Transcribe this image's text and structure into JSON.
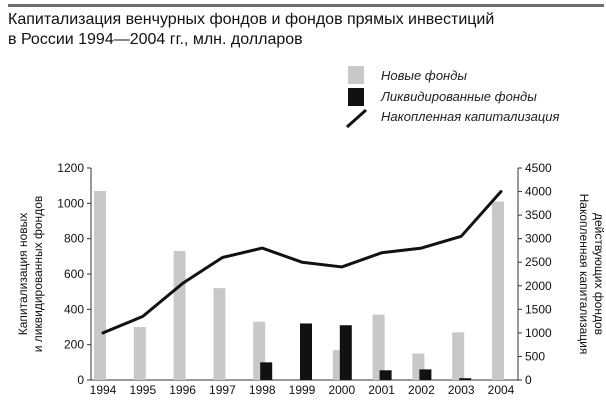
{
  "title": {
    "line1": "Капитализация венчурных фондов и фондов прямых инвестиций",
    "line2": "в России 1994—2004 гг., млн. долларов"
  },
  "legend": {
    "new_funds": "Новые фонды",
    "liquidated_funds": "Ликвидированные фонды",
    "accumulated": "Накопленная капитализация"
  },
  "colors": {
    "new_funds": "#c8c8c8",
    "liquidated_funds": "#111111",
    "line": "#111111",
    "axis": "#333333",
    "title_rule": "#6e6e6e"
  },
  "chart_data": {
    "type": "bar",
    "categories": [
      "1994",
      "1995",
      "1996",
      "1997",
      "1998",
      "1999",
      "2000",
      "2001",
      "2002",
      "2003",
      "2004"
    ],
    "series": [
      {
        "name": "Новые фонды",
        "type": "bar",
        "axis": "left",
        "values": [
          1070,
          300,
          730,
          520,
          330,
          0,
          170,
          370,
          150,
          270,
          1010
        ]
      },
      {
        "name": "Ликвидированные фонды",
        "type": "bar",
        "axis": "left",
        "values": [
          0,
          0,
          0,
          0,
          100,
          320,
          310,
          55,
          60,
          10,
          0
        ]
      },
      {
        "name": "Накопленная капитализация",
        "type": "line",
        "axis": "right",
        "values": [
          1000,
          1350,
          2050,
          2600,
          2800,
          2500,
          2400,
          2700,
          2800,
          3050,
          4000
        ]
      }
    ],
    "ylabel_left_line1": "Капитализация новых",
    "ylabel_left_line2": "и ликвидированных фондов",
    "ylabel_right_line1": "Накопленная капитализация",
    "ylabel_right_line2": "действующих фондов",
    "ylim_left": [
      0,
      1200
    ],
    "yticks_left": [
      0,
      200,
      400,
      600,
      800,
      1000,
      1200
    ],
    "ylim_right": [
      0,
      4500
    ],
    "yticks_right": [
      0,
      500,
      1000,
      1500,
      2000,
      2500,
      3000,
      3500,
      4000,
      4500
    ],
    "grid": false,
    "legend_position": "top-right"
  }
}
